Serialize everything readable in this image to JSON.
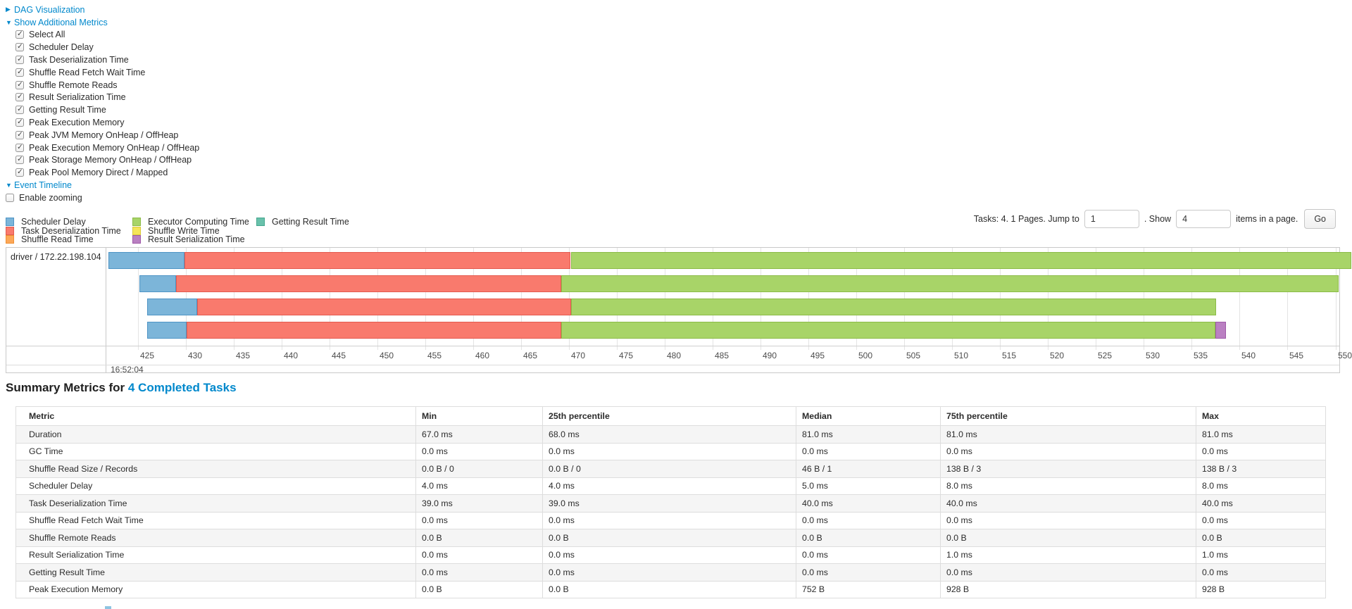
{
  "controls": {
    "dag": {
      "arrow": "▶",
      "label": "DAG Visualization"
    },
    "metrics": {
      "arrow": "▼",
      "label": "Show Additional Metrics"
    },
    "checkboxes": [
      {
        "label": "Select All",
        "checked": true
      },
      {
        "label": "Scheduler Delay",
        "checked": true
      },
      {
        "label": "Task Deserialization Time",
        "checked": true
      },
      {
        "label": "Shuffle Read Fetch Wait Time",
        "checked": true
      },
      {
        "label": "Shuffle Remote Reads",
        "checked": true
      },
      {
        "label": "Result Serialization Time",
        "checked": true
      },
      {
        "label": "Getting Result Time",
        "checked": true
      },
      {
        "label": "Peak Execution Memory",
        "checked": true
      },
      {
        "label": "Peak JVM Memory OnHeap / OffHeap",
        "checked": true
      },
      {
        "label": "Peak Execution Memory OnHeap / OffHeap",
        "checked": true
      },
      {
        "label": "Peak Storage Memory OnHeap / OffHeap",
        "checked": true
      },
      {
        "label": "Peak Pool Memory Direct / Mapped",
        "checked": true
      }
    ],
    "event_timeline": {
      "arrow": "▼",
      "label": "Event Timeline"
    },
    "enable_zooming": {
      "label": "Enable zooming",
      "checked": false
    }
  },
  "pagination": {
    "tasks_text": "Tasks: 4. 1 Pages. Jump to",
    "jump_value": "1",
    "show_text": ". Show",
    "show_value": "4",
    "items_text": "items in a page.",
    "go_label": "Go"
  },
  "timeline": {
    "row_label": "driver / 172.22.198.104",
    "axis": {
      "t_min": 421.8,
      "t_max": 550.55,
      "tick_start": 425,
      "tick_end": 550,
      "tick_step": 5,
      "major_label": "16:52:04"
    },
    "types": {
      "sd": {
        "label": "Scheduler Delay",
        "fill": "#7cb5d9",
        "border": "#4e94c5"
      },
      "td": {
        "label": "Task Deserialization Time",
        "fill": "#f97a6d",
        "border": "#e45a4f"
      },
      "sr": {
        "label": "Shuffle Read Time",
        "fill": "#fca858",
        "border": "#ef9034"
      },
      "ec": {
        "label": "Executor Computing Time",
        "fill": "#a8d468",
        "border": "#8bbb47"
      },
      "sw": {
        "label": "Shuffle Write Time",
        "fill": "#f5e559",
        "border": "#d9c83b"
      },
      "rs": {
        "label": "Result Serialization Time",
        "fill": "#ba80c2",
        "border": "#9f59a8"
      },
      "gr": {
        "label": "Getting Result Time",
        "fill": "#69c1ab",
        "border": "#45a78e"
      }
    },
    "legend_columns": [
      [
        "sd",
        "td",
        "sr"
      ],
      [
        "ec",
        "sw",
        "rs"
      ],
      [
        "gr"
      ]
    ],
    "rows": [
      [
        [
          "sd",
          421.95,
          429.9
        ],
        [
          "td",
          429.9,
          470.2
        ],
        [
          "ec",
          470.2,
          551.6
        ]
      ],
      [
        [
          "sd",
          425.2,
          429.0
        ],
        [
          "td",
          429.0,
          469.2
        ],
        [
          "ec",
          469.2,
          550.3
        ]
      ],
      [
        [
          "sd",
          426.0,
          431.2
        ],
        [
          "td",
          431.2,
          470.2
        ],
        [
          "ec",
          470.2,
          537.5
        ]
      ],
      [
        [
          "sd",
          426.0,
          430.1
        ],
        [
          "td",
          430.1,
          469.2
        ],
        [
          "ec",
          469.2,
          537.5
        ],
        [
          "rs",
          537.5,
          538.6
        ]
      ]
    ]
  },
  "summary": {
    "title_prefix": "Summary Metrics for",
    "title_link": "4 Completed Tasks",
    "columns": [
      "Metric",
      "Min",
      "25th percentile",
      "Median",
      "75th percentile",
      "Max"
    ],
    "rows": [
      [
        "Duration",
        "67.0 ms",
        "68.0 ms",
        "81.0 ms",
        "81.0 ms",
        "81.0 ms"
      ],
      [
        "GC Time",
        "0.0 ms",
        "0.0 ms",
        "0.0 ms",
        "0.0 ms",
        "0.0 ms"
      ],
      [
        "Shuffle Read Size / Records",
        "0.0 B / 0",
        "0.0 B / 0",
        "46 B / 1",
        "138 B / 3",
        "138 B / 3"
      ],
      [
        "Scheduler Delay",
        "4.0 ms",
        "4.0 ms",
        "5.0 ms",
        "8.0 ms",
        "8.0 ms"
      ],
      [
        "Task Deserialization Time",
        "39.0 ms",
        "39.0 ms",
        "40.0 ms",
        "40.0 ms",
        "40.0 ms"
      ],
      [
        "Shuffle Read Fetch Wait Time",
        "0.0 ms",
        "0.0 ms",
        "0.0 ms",
        "0.0 ms",
        "0.0 ms"
      ],
      [
        "Shuffle Remote Reads",
        "0.0 B",
        "0.0 B",
        "0.0 B",
        "0.0 B",
        "0.0 B"
      ],
      [
        "Result Serialization Time",
        "0.0 ms",
        "0.0 ms",
        "0.0 ms",
        "1.0 ms",
        "1.0 ms"
      ],
      [
        "Getting Result Time",
        "0.0 ms",
        "0.0 ms",
        "0.0 ms",
        "0.0 ms",
        "0.0 ms"
      ],
      [
        "Peak Execution Memory",
        "0.0 B",
        "0.0 B",
        "752 B",
        "928 B",
        "928 B"
      ]
    ]
  }
}
